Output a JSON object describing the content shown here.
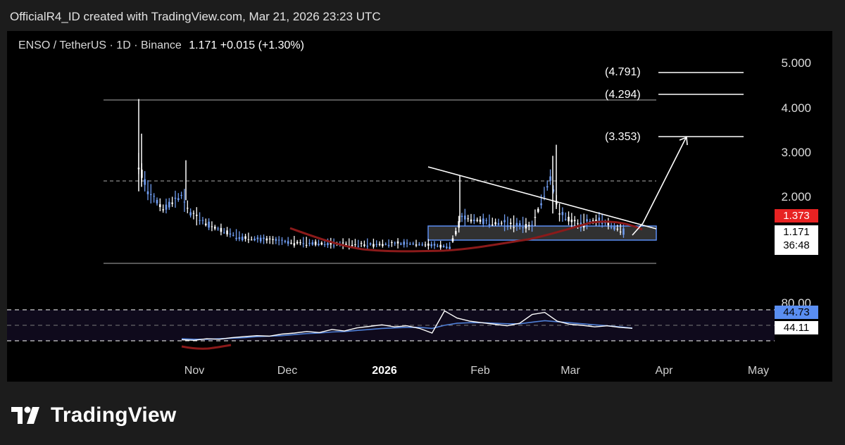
{
  "header": {
    "caption": "OfficialR4_ID created with TradingView.com, Mar 21, 2026 23:23 UTC"
  },
  "legend": {
    "symbol": "ENSO / TetherUS · 1D · Binance",
    "price": "1.171 +0.015 (+1.30%)"
  },
  "price_scale": {
    "ticks": [
      "5.000",
      "4.000",
      "3.000",
      "2.000"
    ],
    "ma_label": "1.373",
    "last_price": "1.171",
    "countdown": "36:48"
  },
  "targets": [
    "(4.791)",
    "(4.294)",
    "(3.353)"
  ],
  "rsi_scale": {
    "upper": "80.00",
    "ma_value": "44.73",
    "rsi_value": "44.11"
  },
  "time_axis": [
    {
      "label": "Nov",
      "bold": false
    },
    {
      "label": "Dec",
      "bold": false
    },
    {
      "label": "2026",
      "bold": true
    },
    {
      "label": "Feb",
      "bold": false
    },
    {
      "label": "Mar",
      "bold": false
    },
    {
      "label": "Apr",
      "bold": false
    },
    {
      "label": "May",
      "bold": false
    }
  ],
  "brand": {
    "name": "TradingView"
  },
  "colors": {
    "candle": "#6f9cf0",
    "candle_up": "#ffffff",
    "ma": "#8b1a1a",
    "rsi": "#ffffff",
    "rsi_ma": "#4f7fd6",
    "ma_badge": "#e82222",
    "rsi_ma_badge": "#5a8ef2"
  },
  "chart_data": {
    "type": "line",
    "price_ylim": [
      0.5,
      5.3
    ],
    "price_approx": [
      {
        "t": "2025-10-12",
        "v": 2.7
      },
      {
        "t": "2025-10-15",
        "v": 2.1
      },
      {
        "t": "2025-10-20",
        "v": 1.7
      },
      {
        "t": "2025-10-26",
        "v": 2.0
      },
      {
        "t": "2025-10-29",
        "v": 1.6
      },
      {
        "t": "2025-11-05",
        "v": 1.3
      },
      {
        "t": "2025-11-15",
        "v": 1.05
      },
      {
        "t": "2025-12-01",
        "v": 0.95
      },
      {
        "t": "2025-12-20",
        "v": 0.9
      },
      {
        "t": "2026-01-10",
        "v": 0.92
      },
      {
        "t": "2026-01-22",
        "v": 0.85
      },
      {
        "t": "2026-01-26",
        "v": 1.5
      },
      {
        "t": "2026-02-05",
        "v": 1.4
      },
      {
        "t": "2026-02-18",
        "v": 1.3
      },
      {
        "t": "2026-02-24",
        "v": 2.4
      },
      {
        "t": "2026-02-27",
        "v": 1.6
      },
      {
        "t": "2026-03-05",
        "v": 1.35
      },
      {
        "t": "2026-03-12",
        "v": 1.45
      },
      {
        "t": "2026-03-21",
        "v": 1.171
      }
    ],
    "levels": [
      {
        "v": 4.18
      },
      {
        "v": 2.35
      },
      {
        "v": 0.62
      }
    ],
    "targets": [
      4.791,
      4.294,
      3.353
    ],
    "rsi": {
      "ylim": [
        10,
        90
      ],
      "series": [
        {
          "values": [
            22,
            21,
            24,
            23,
            26,
            28,
            30,
            29,
            33,
            35,
            38,
            36,
            42,
            39,
            45,
            48,
            51,
            47,
            49,
            44,
            35,
            78,
            64,
            58,
            55,
            52,
            49,
            54,
            71,
            75,
            58,
            52,
            50,
            47,
            49,
            46,
            44.11
          ]
        },
        {
          "values": [
            24,
            23,
            23,
            24,
            25,
            26,
            28,
            29,
            30,
            32,
            34,
            35,
            37,
            38,
            40,
            42,
            44,
            45,
            46,
            46,
            44,
            50,
            54,
            55,
            55,
            54,
            53,
            53,
            56,
            59,
            57,
            55,
            53,
            51,
            49,
            47,
            44.73
          ]
        }
      ]
    }
  }
}
